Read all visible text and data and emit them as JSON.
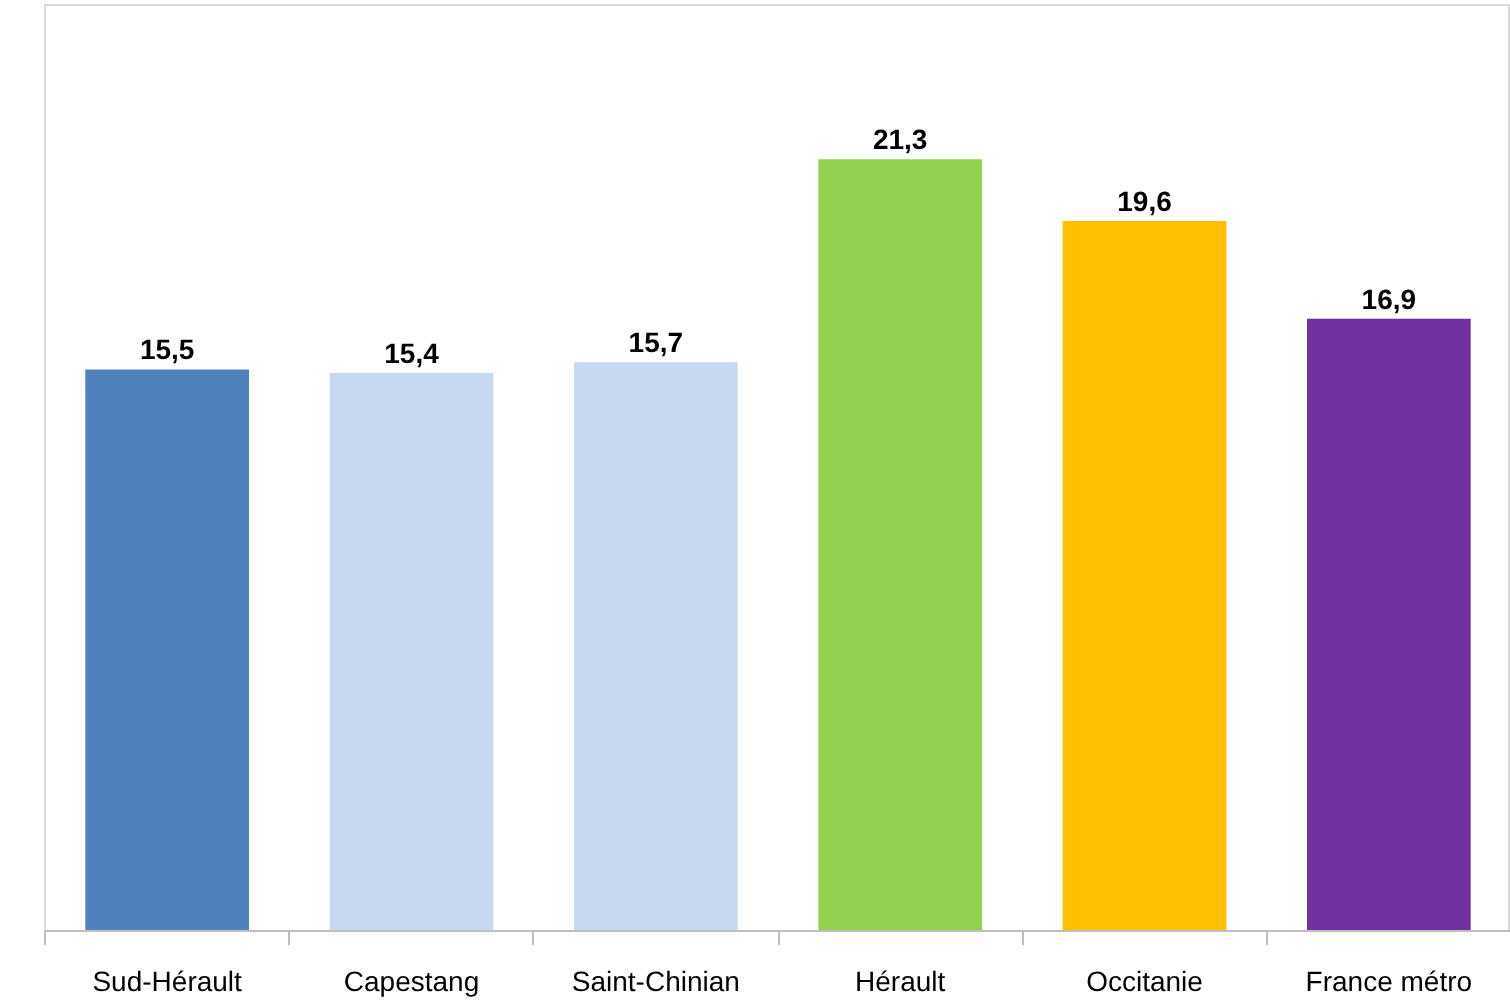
{
  "chart_data": {
    "type": "bar",
    "categories": [
      "Sud-Hérault",
      "Capestang",
      "Saint-Chinian",
      "Hérault",
      "Occitanie",
      "France métro"
    ],
    "values": [
      15.5,
      15.4,
      15.7,
      21.3,
      19.6,
      16.9
    ],
    "value_labels": [
      "15,5",
      "15,4",
      "15,7",
      "21,3",
      "19,6",
      "16,9"
    ],
    "colors": [
      "#4f81bd",
      "#c6d9f1",
      "#c6d9f1",
      "#92d050",
      "#ffc000",
      "#7030a0"
    ]
  }
}
